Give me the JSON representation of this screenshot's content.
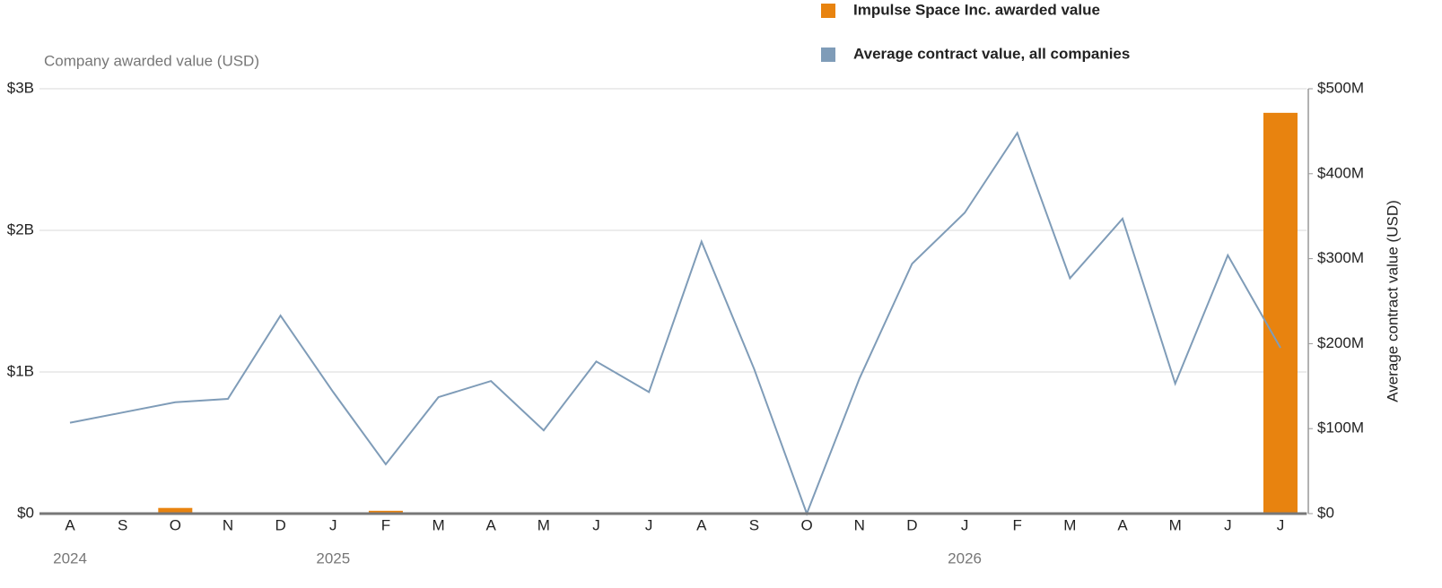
{
  "chart_data": {
    "type": "bar_line",
    "y_label": "Company awarded value (USD)",
    "y2_label": "Average contract value (USD)",
    "categories": [
      "A",
      "S",
      "O",
      "N",
      "D",
      "J",
      "F",
      "M",
      "A",
      "M",
      "J",
      "J",
      "A",
      "S",
      "O",
      "N",
      "D",
      "J",
      "F",
      "M",
      "A",
      "M",
      "J",
      "J"
    ],
    "years": [
      "2024",
      null,
      null,
      null,
      null,
      "2025",
      null,
      null,
      null,
      null,
      null,
      null,
      null,
      null,
      null,
      null,
      null,
      "2026",
      null,
      null,
      null,
      null,
      null,
      null
    ],
    "series": [
      {
        "name": "Impulse Space Inc. awarded value",
        "color": "#e8830f",
        "type": "bar",
        "values": [
          0,
          0,
          40000000,
          0,
          0,
          0,
          20000000,
          0,
          0,
          0,
          0,
          0,
          0,
          0,
          0,
          0,
          0,
          0,
          0,
          0,
          0,
          0,
          0,
          2830000000
        ]
      },
      {
        "name": "Average contract value, all companies",
        "color": "#7f9cb8",
        "type": "line",
        "axis": "y2",
        "values": [
          107000000,
          119000000,
          131000000,
          135000000,
          233000000,
          143000000,
          58000000,
          137000000,
          156000000,
          98000000,
          179000000,
          143000000,
          320000000,
          170000000,
          0,
          159000000,
          294000000,
          354000000,
          448000000,
          277000000,
          347000000,
          153000000,
          304000000,
          195000000
        ]
      }
    ],
    "ylim": [
      0,
      3000000000
    ],
    "yticks": [
      {
        "value": 0,
        "label": "$0"
      },
      {
        "value": 1000000000,
        "label": "$1B"
      },
      {
        "value": 2000000000,
        "label": "$2B"
      },
      {
        "value": 3000000000,
        "label": "$3B"
      }
    ],
    "y2lim": [
      0,
      500000000
    ],
    "y2ticks": [
      {
        "value": 0,
        "label": "$0"
      },
      {
        "value": 100000000,
        "label": "$100M"
      },
      {
        "value": 200000000,
        "label": "$200M"
      },
      {
        "value": 300000000,
        "label": "$300M"
      },
      {
        "value": 400000000,
        "label": "$400M"
      },
      {
        "value": 500000000,
        "label": "$500M"
      }
    ],
    "grid": true
  }
}
